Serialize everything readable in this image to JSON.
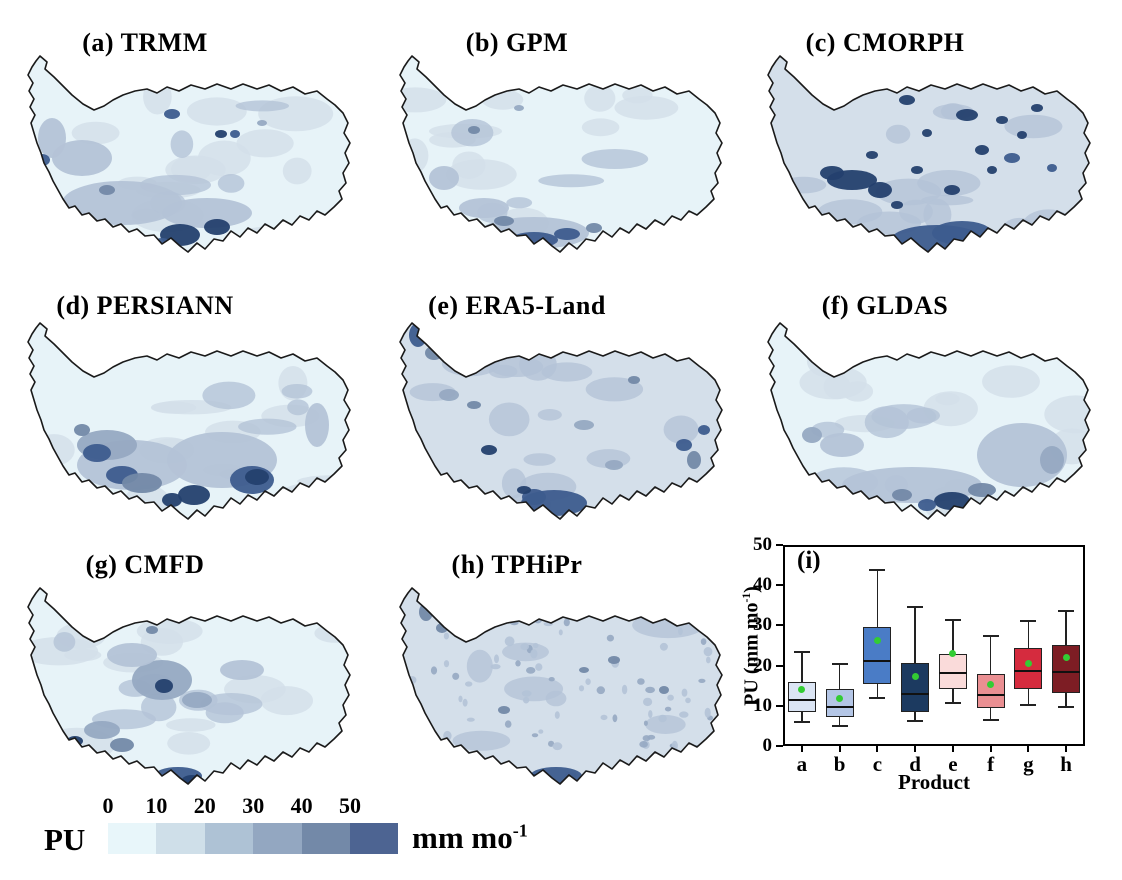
{
  "figure": {
    "panels": [
      {
        "letter": "a",
        "product": "TRMM",
        "title": "(a) TRMM"
      },
      {
        "letter": "b",
        "product": "GPM",
        "title": "(b) GPM"
      },
      {
        "letter": "c",
        "product": "CMORPH",
        "title": "(c) CMORPH"
      },
      {
        "letter": "d",
        "product": "PERSIANN",
        "title": "(d) PERSIANN"
      },
      {
        "letter": "e",
        "product": "ERA5-Land",
        "title": "(e) ERA5-Land"
      },
      {
        "letter": "f",
        "product": "GLDAS",
        "title": "(f) GLDAS"
      },
      {
        "letter": "g",
        "product": "CMFD",
        "title": "(g) CMFD"
      },
      {
        "letter": "h",
        "product": "TPHiPr",
        "title": "(h) TPHiPr"
      }
    ],
    "boxplot_panel": {
      "label": "(i)",
      "xlabel": "Product",
      "ylabel": "PU (mm mo⁻¹)",
      "ylabel_parts": {
        "prefix": "PU (mm mo",
        "sup": "-1",
        "suffix": ")"
      },
      "yticks": [
        "0",
        "10",
        "20",
        "30",
        "40",
        "50"
      ],
      "categories": [
        "a",
        "b",
        "c",
        "d",
        "e",
        "f",
        "g",
        "h"
      ]
    },
    "colorbar": {
      "label": "PU",
      "ticks": [
        "0",
        "10",
        "20",
        "30",
        "40",
        "50"
      ],
      "unit": "mm mo⁻¹",
      "unit_parts": {
        "prefix": "mm mo",
        "sup": "-1"
      },
      "segment_colors": [
        "#e8f6fa",
        "#cfdfe9",
        "#aec2d5",
        "#93a7c1",
        "#7389a8",
        "#4d6492"
      ]
    }
  },
  "chart_data": [
    {
      "type": "heatmap",
      "subtype": "map-grid-choropleth",
      "panels": [
        "(a) TRMM",
        "(b) GPM",
        "(c) CMORPH",
        "(d) PERSIANN",
        "(e) ERA5-Land",
        "(f) GLDAS",
        "(g) CMFD",
        "(h) TPHiPr"
      ],
      "variable": "PU",
      "unit": "mm mo⁻¹",
      "scale_ticks": [
        0,
        10,
        20,
        30,
        40,
        50
      ],
      "scale_colors": [
        "#e8f6fa",
        "#cfdfe9",
        "#aec2d5",
        "#93a7c1",
        "#7389a8",
        "#4d6492"
      ],
      "legend_position": "bottom-left"
    },
    {
      "type": "box",
      "title": "(i)",
      "xlabel": "Product",
      "ylabel": "PU (mm mo⁻¹)",
      "ylim": [
        0,
        50
      ],
      "yticks": [
        0,
        10,
        20,
        30,
        40,
        50
      ],
      "categories": [
        "a",
        "b",
        "c",
        "d",
        "e",
        "f",
        "g",
        "h"
      ],
      "mean_marker_color": "#33cc33",
      "boxes": [
        {
          "label": "a",
          "product": "TRMM",
          "whisker_low": 6.0,
          "q1": 8.5,
          "median": 11.5,
          "q3": 15.8,
          "whisker_high": 23.5,
          "mean": 14.0,
          "color": "#dbe5f4"
        },
        {
          "label": "b",
          "product": "GPM",
          "whisker_low": 5.0,
          "q1": 7.3,
          "median": 9.8,
          "q3": 14.2,
          "whisker_high": 20.4,
          "mean": 11.8,
          "color": "#b4c6e6"
        },
        {
          "label": "c",
          "product": "CMORPH",
          "whisker_low": 12.0,
          "q1": 15.4,
          "median": 21.2,
          "q3": 29.5,
          "whisker_high": 43.7,
          "mean": 26.2,
          "color": "#4a7cc6"
        },
        {
          "label": "d",
          "product": "PERSIANN",
          "whisker_low": 6.2,
          "q1": 8.5,
          "median": 12.9,
          "q3": 20.7,
          "whisker_high": 34.7,
          "mean": 17.2,
          "color": "#1c3a60"
        },
        {
          "label": "e",
          "product": "ERA5-Land",
          "whisker_low": 10.8,
          "q1": 14.1,
          "median": 18.1,
          "q3": 22.8,
          "whisker_high": 31.4,
          "mean": 23.0,
          "color": "#fadbda"
        },
        {
          "label": "f",
          "product": "GLDAS",
          "whisker_low": 6.5,
          "q1": 9.4,
          "median": 12.6,
          "q3": 17.9,
          "whisker_high": 27.4,
          "mean": 15.3,
          "color": "#ea8f92"
        },
        {
          "label": "g",
          "product": "CMFD",
          "whisker_low": 10.2,
          "q1": 14.1,
          "median": 18.6,
          "q3": 24.3,
          "whisker_high": 31.0,
          "mean": 20.6,
          "color": "#d52b3e"
        },
        {
          "label": "h",
          "product": "TPHiPr",
          "whisker_low": 9.7,
          "q1": 13.3,
          "median": 18.4,
          "q3": 25.2,
          "whisker_high": 33.5,
          "mean": 22.1,
          "color": "#7d1d24"
        }
      ]
    }
  ]
}
